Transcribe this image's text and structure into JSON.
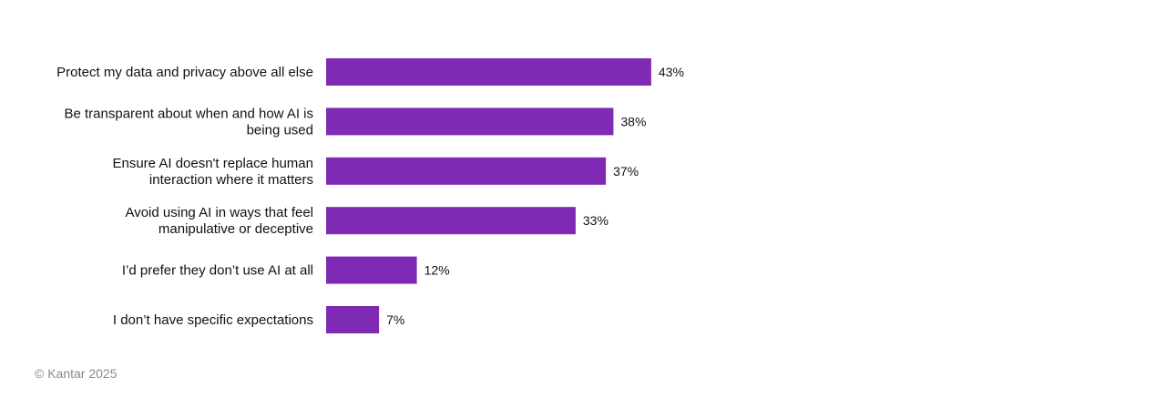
{
  "chart_data": {
    "type": "bar",
    "orientation": "horizontal",
    "categories": [
      [
        "Protect my data and privacy above all else"
      ],
      [
        "Be transparent about when and how AI is",
        "being used"
      ],
      [
        "Ensure AI doesn't replace human",
        "interaction where it matters"
      ],
      [
        "Avoid using AI in ways that feel",
        "manipulative or deceptive"
      ],
      [
        "I’d prefer they don’t use AI at all"
      ],
      [
        "I don’t have specific expectations"
      ]
    ],
    "values": [
      43,
      38,
      37,
      33,
      12,
      7
    ],
    "value_labels": [
      "43%",
      "38%",
      "37%",
      "33%",
      "12%",
      "7%"
    ],
    "unit": "%",
    "xlim": [
      0,
      100
    ],
    "grid": false,
    "axes_visible": false,
    "bar_color": "#7F2AB5"
  },
  "footer": {
    "copyright": "© Kantar 2025"
  }
}
